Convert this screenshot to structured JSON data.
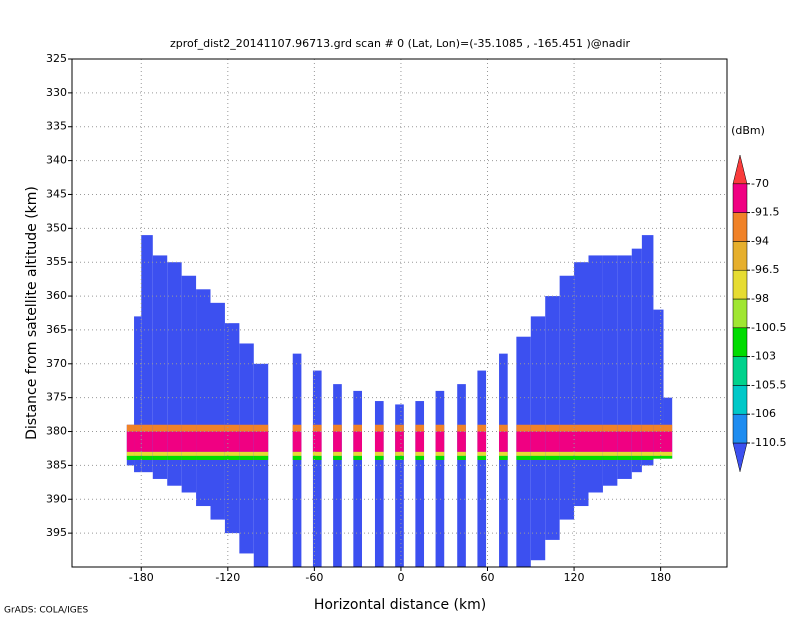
{
  "chart_data": {
    "type": "heatmap",
    "title": "zprof_dist2_20141107.96713.grd  scan # 0  (Lat, Lon)=(-35.1085 , -165.451 )@nadir",
    "x_label": "Horizontal distance (km)",
    "y_label": "Distance from satellite altitude (km)",
    "colorbar_label": "(dBm)",
    "footer": "GrADS: COLA/IGES",
    "xlim": [
      -228,
      226
    ],
    "ylim": [
      325,
      400
    ],
    "y_inverted": true,
    "grid": true,
    "xticks": [
      -180,
      -120,
      -60,
      0,
      60,
      120,
      180
    ],
    "yticks": [
      325,
      330,
      335,
      340,
      345,
      350,
      355,
      360,
      365,
      370,
      375,
      380,
      385,
      390,
      395
    ],
    "levels": [
      -110.5,
      -106,
      -105.5,
      -103,
      -100.5,
      -98,
      -96.5,
      -94,
      -91.5,
      -70
    ],
    "colors": [
      "#3c50f0",
      "#1e8cf0",
      "#00c8c8",
      "#00d28c",
      "#00dc00",
      "#a0e632",
      "#e6dc32",
      "#e6af2d",
      "#f08228",
      "#f00082",
      "#fa3c3c"
    ],
    "columns": [
      [
        -190,
        -185,
        379,
        385
      ],
      [
        -185,
        -180,
        363,
        386
      ],
      [
        -180,
        -172,
        351,
        386
      ],
      [
        -172,
        -162,
        354,
        387
      ],
      [
        -162,
        -152,
        355,
        388
      ],
      [
        -152,
        -142,
        357,
        389
      ],
      [
        -142,
        -132,
        359,
        391
      ],
      [
        -132,
        -122,
        361,
        393
      ],
      [
        -122,
        -112,
        364,
        395
      ],
      [
        -112,
        -102,
        367,
        398
      ],
      [
        -102,
        -92,
        370,
        400
      ],
      [
        -75,
        -69,
        368.5,
        400
      ],
      [
        -61,
        -55,
        371,
        400
      ],
      [
        -47,
        -41,
        373,
        400
      ],
      [
        -33,
        -27,
        374,
        400
      ],
      [
        -18,
        -12,
        375.5,
        400
      ],
      [
        -4,
        2,
        376,
        400
      ],
      [
        10,
        16,
        375.5,
        400
      ],
      [
        24,
        30,
        374,
        400
      ],
      [
        39,
        45,
        373,
        400
      ],
      [
        53,
        59,
        371,
        400
      ],
      [
        68,
        74,
        368.5,
        400
      ],
      [
        80,
        90,
        366,
        400
      ],
      [
        90,
        100,
        363,
        399
      ],
      [
        100,
        110,
        360,
        396
      ],
      [
        110,
        120,
        357,
        393
      ],
      [
        120,
        130,
        355,
        391
      ],
      [
        130,
        140,
        354,
        389
      ],
      [
        140,
        150,
        354,
        388
      ],
      [
        150,
        160,
        354,
        387
      ],
      [
        160,
        167,
        353,
        386
      ],
      [
        167,
        175,
        351,
        385
      ],
      [
        175,
        182,
        362,
        384
      ],
      [
        182,
        188,
        375,
        384
      ]
    ],
    "band": [
      {
        "top": 379,
        "bottom": 380,
        "color": "#f08228"
      },
      {
        "top": 380,
        "bottom": 383,
        "color": "#f00082"
      },
      {
        "top": 383,
        "bottom": 383.6,
        "color": "#e6dc32"
      },
      {
        "top": 383.6,
        "bottom": 384.2,
        "color": "#00dc00"
      }
    ]
  }
}
